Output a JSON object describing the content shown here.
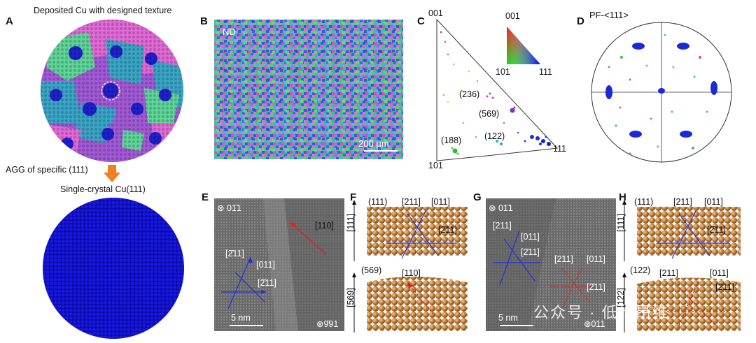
{
  "figure": {
    "panelA": {
      "letter": "A",
      "top_caption": "Deposited Cu with designed texture",
      "middle_caption": "AGG of specific (111)",
      "bottom_caption": "Single-crystal Cu(111)",
      "colors": {
        "pink": "#e36ad8",
        "violet": "#a35ad8",
        "green": "#5fd69a",
        "cyan": "#3aa6c8",
        "blue": "#2020d0",
        "arrow": "#f08020"
      }
    },
    "panelB": {
      "letter": "B",
      "tag": "ND",
      "scalebar": "200 μm"
    },
    "panelC": {
      "letter": "C",
      "corners": [
        "001",
        "101",
        "111"
      ],
      "key_corners": [
        "001",
        "101",
        "111"
      ],
      "poles": [
        "(236)",
        "(569)",
        "(122)",
        "(188)"
      ]
    },
    "panelD": {
      "letter": "D",
      "title": "PF-<111>"
    },
    "panelE": {
      "letter": "E",
      "zone_top": "⊗ 01̄1",
      "dir_110": "[110]",
      "dir_a": "[2̄11]",
      "dir_b": "[011]",
      "dir_c": "[2̄11]",
      "scalebar": "5 nm",
      "zone_bottom": "⊗9̄91"
    },
    "panelF": {
      "letter": "F",
      "top_plane": "(111)",
      "top_d1": "[211]",
      "top_d2": "[011]",
      "top_d3": "[2̄11]",
      "top_axis": "[111]",
      "bottom_plane": "(569)",
      "bottom_d1": "[110]",
      "bottom_axis": "[569]"
    },
    "panelG": {
      "letter": "G",
      "zone_top": "⊗ 01̄1",
      "dir_a": "[211]",
      "dir_b": "[011]",
      "dir_c": "[2̄11]",
      "dir_d": "[211]",
      "dir_e": "[011]",
      "dir_f": "[2̄11]",
      "scalebar": "5 nm",
      "zone_bottom": "⊗011"
    },
    "panelH": {
      "letter": "H",
      "top_plane": "(111)",
      "top_d1": "[211]",
      "top_d2": "[011]",
      "top_d3": "[2̄11]",
      "top_axis": "[111]",
      "bottom_plane": "(122)",
      "bottom_d1": "[211]",
      "bottom_d2": "[011]",
      "bottom_d3": "[2̄11]",
      "bottom_axis": "[122]"
    },
    "watermark": "公众号 · 低维昂维"
  }
}
